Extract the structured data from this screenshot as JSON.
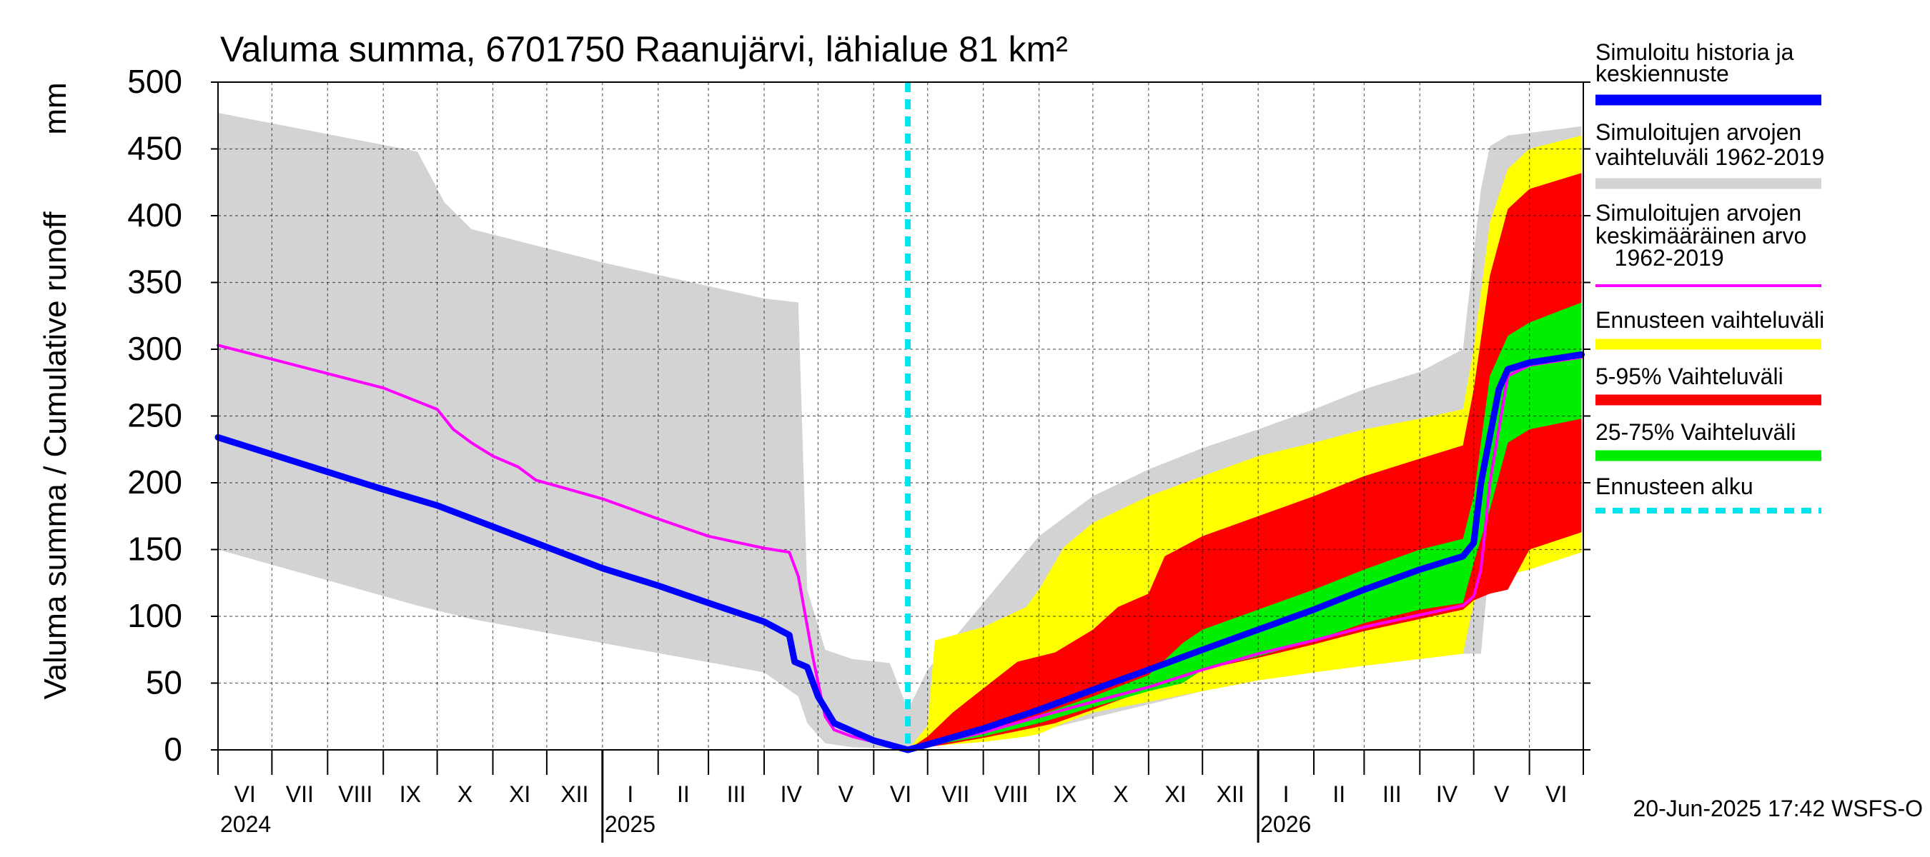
{
  "chart_data": {
    "type": "area",
    "title": "Valuma summa, 6701750 Raanujärvi, lähialue 81 km²",
    "ylabel": "Valuma summa / Cumulative runoff",
    "yunit": "mm",
    "ylim": [
      0,
      500
    ],
    "yticks": [
      0,
      50,
      100,
      150,
      200,
      250,
      300,
      350,
      400,
      450,
      500
    ],
    "xlim": [
      "2024-06-01",
      "2026-06-30"
    ],
    "grid": true,
    "legend_position": "right",
    "footer": "20-Jun-2025 17:42 WSFS-O",
    "forecast_start": "2025-06-20",
    "months": [
      {
        "label": "VI",
        "start": "2024-06-01"
      },
      {
        "label": "VII",
        "start": "2024-07-01"
      },
      {
        "label": "VIII",
        "start": "2024-08-01"
      },
      {
        "label": "IX",
        "start": "2024-09-01"
      },
      {
        "label": "X",
        "start": "2024-10-01"
      },
      {
        "label": "XI",
        "start": "2024-11-01"
      },
      {
        "label": "XII",
        "start": "2024-12-01"
      },
      {
        "label": "I",
        "start": "2025-01-01"
      },
      {
        "label": "II",
        "start": "2025-02-01"
      },
      {
        "label": "III",
        "start": "2025-03-01"
      },
      {
        "label": "IV",
        "start": "2025-04-01"
      },
      {
        "label": "V",
        "start": "2025-05-01"
      },
      {
        "label": "VI",
        "start": "2025-06-01"
      },
      {
        "label": "VII",
        "start": "2025-07-01"
      },
      {
        "label": "VIII",
        "start": "2025-08-01"
      },
      {
        "label": "IX",
        "start": "2025-09-01"
      },
      {
        "label": "X",
        "start": "2025-10-01"
      },
      {
        "label": "XI",
        "start": "2025-11-01"
      },
      {
        "label": "XII",
        "start": "2025-12-01"
      },
      {
        "label": "I",
        "start": "2026-01-01"
      },
      {
        "label": "II",
        "start": "2026-02-01"
      },
      {
        "label": "III",
        "start": "2026-03-01"
      },
      {
        "label": "IV",
        "start": "2026-04-01"
      },
      {
        "label": "V",
        "start": "2026-05-01"
      },
      {
        "label": "VI",
        "start": "2026-06-01"
      }
    ],
    "years": [
      {
        "label": "2024",
        "date": "2024-06-01"
      },
      {
        "label": "2025",
        "date": "2025-01-01"
      },
      {
        "label": "2026",
        "date": "2026-01-01"
      }
    ],
    "legend": [
      {
        "label": "Simuloitu historia ja\nkeskiennuste",
        "color": "#0000ff",
        "style": "thick"
      },
      {
        "label": "Simuloitujen arvojen\nvaihteluväli 1962-2019",
        "color": "#d3d3d3",
        "style": "thick"
      },
      {
        "label": "Simuloitujen arvojen\nkeskimääräinen arvo\n   1962-2019",
        "color": "#ff00ff",
        "style": "thin"
      },
      {
        "label": "Ennusteen vaihteluväli",
        "color": "#ffff00",
        "style": "thick"
      },
      {
        "label": "5-95% Vaihteluväli",
        "color": "#ff0000",
        "style": "thick"
      },
      {
        "label": "25-75% Vaihteluväli",
        "color": "#00ee00",
        "style": "thick"
      },
      {
        "label": "Ennusteen alku",
        "color": "#00e5ee",
        "style": "dotted"
      }
    ],
    "series": [
      {
        "name": "Simuloitujen arvojen vaihteluväli 1962-2019",
        "kind": "band",
        "color": "#d3d3d3",
        "x": [
          "2024-06-01",
          "2024-09-20",
          "2024-10-05",
          "2024-10-20",
          "2025-01-01",
          "2025-04-01",
          "2025-04-20",
          "2025-04-25",
          "2025-05-05",
          "2025-05-20",
          "2025-06-10",
          "2025-06-20",
          "2025-07-01",
          "2025-08-01",
          "2025-09-01",
          "2025-10-01",
          "2025-11-01",
          "2025-12-01",
          "2026-01-01",
          "2026-02-01",
          "2026-03-01",
          "2026-04-01",
          "2026-04-25",
          "2026-05-05",
          "2026-05-10",
          "2026-05-20",
          "2026-06-01",
          "2026-06-30"
        ],
        "upper": [
          477,
          448,
          410,
          390,
          365,
          338,
          335,
          120,
          75,
          68,
          65,
          30,
          60,
          110,
          160,
          190,
          210,
          226,
          240,
          255,
          270,
          283,
          300,
          420,
          452,
          460,
          462,
          467
        ],
        "lower": [
          150,
          108,
          103,
          98,
          80,
          58,
          40,
          20,
          5,
          2,
          1,
          0,
          2,
          7,
          14,
          24,
          34,
          44,
          52,
          58,
          63,
          68,
          72,
          72,
          143,
          145,
          147,
          150
        ]
      },
      {
        "name": "Ennusteen vaihteluväli",
        "kind": "band",
        "color": "#ffff00",
        "x": [
          "2025-06-20",
          "2025-07-01",
          "2025-07-05",
          "2025-08-01",
          "2025-08-25",
          "2025-09-01",
          "2025-09-15",
          "2025-10-01",
          "2025-11-01",
          "2025-12-01",
          "2026-01-01",
          "2026-02-01",
          "2026-03-01",
          "2026-04-01",
          "2026-04-25",
          "2026-05-01",
          "2026-05-10",
          "2026-05-20",
          "2026-06-01",
          "2026-06-30"
        ],
        "upper": [
          0,
          18,
          82,
          92,
          107,
          120,
          152,
          170,
          190,
          205,
          220,
          230,
          240,
          248,
          255,
          300,
          395,
          435,
          450,
          460
        ],
        "lower": [
          0,
          2,
          3,
          6,
          10,
          12,
          20,
          28,
          36,
          44,
          52,
          58,
          63,
          68,
          72,
          110,
          127,
          131,
          135,
          148
        ]
      },
      {
        "name": "5-95% Vaihteluväli",
        "kind": "band",
        "color": "#ff0000",
        "x": [
          "2025-06-20",
          "2025-07-01",
          "2025-07-15",
          "2025-08-01",
          "2025-08-20",
          "2025-09-10",
          "2025-10-01",
          "2025-10-15",
          "2025-11-01",
          "2025-11-10",
          "2025-12-01",
          "2026-01-01",
          "2026-02-01",
          "2026-03-01",
          "2026-04-01",
          "2026-04-25",
          "2026-05-01",
          "2026-05-10",
          "2026-05-20",
          "2026-06-01",
          "2026-06-30"
        ],
        "upper": [
          0,
          10,
          28,
          46,
          66,
          73,
          90,
          107,
          117,
          145,
          160,
          175,
          190,
          205,
          218,
          228,
          270,
          355,
          405,
          420,
          432
        ],
        "lower": [
          0,
          2,
          5,
          9,
          14,
          20,
          30,
          37,
          45,
          52,
          60,
          69,
          79,
          89,
          98,
          105,
          112,
          117,
          120,
          150,
          163
        ]
      },
      {
        "name": "25-75% Vaihteluväli",
        "kind": "band",
        "color": "#00ee00",
        "x": [
          "2025-06-20",
          "2025-07-01",
          "2025-08-01",
          "2025-09-01",
          "2025-10-01",
          "2025-11-01",
          "2025-11-20",
          "2025-12-01",
          "2026-01-01",
          "2026-02-01",
          "2026-03-01",
          "2026-04-01",
          "2026-04-25",
          "2026-05-01",
          "2026-05-10",
          "2026-05-20",
          "2026-06-01",
          "2026-06-30"
        ],
        "upper": [
          0,
          4,
          13,
          26,
          40,
          56,
          80,
          90,
          105,
          120,
          135,
          150,
          158,
          190,
          280,
          310,
          320,
          335
        ],
        "lower": [
          0,
          3,
          10,
          20,
          32,
          44,
          50,
          60,
          70,
          82,
          95,
          105,
          110,
          140,
          180,
          230,
          240,
          248
        ]
      },
      {
        "name": "Simuloitujen arvojen keskimääräinen arvo 1962-2019",
        "kind": "line",
        "color": "#ff00ff",
        "x": [
          "2024-06-01",
          "2024-09-01",
          "2024-10-01",
          "2024-10-10",
          "2024-10-20",
          "2024-11-01",
          "2024-11-15",
          "2024-11-25",
          "2025-01-01",
          "2025-02-01",
          "2025-03-01",
          "2025-04-01",
          "2025-04-15",
          "2025-04-20",
          "2025-04-28",
          "2025-05-05",
          "2025-05-10",
          "2025-05-20",
          "2025-06-01",
          "2025-06-20",
          "2025-07-01",
          "2025-08-01",
          "2025-09-01",
          "2025-10-01",
          "2025-11-01",
          "2025-12-01",
          "2026-01-01",
          "2026-02-01",
          "2026-03-01",
          "2026-04-01",
          "2026-04-25",
          "2026-05-01",
          "2026-05-05",
          "2026-05-10",
          "2026-05-20",
          "2026-06-01",
          "2026-06-30"
        ],
        "y": [
          303,
          271,
          255,
          240,
          230,
          220,
          212,
          202,
          188,
          173,
          160,
          151,
          148,
          130,
          70,
          25,
          15,
          10,
          6,
          0,
          4,
          13,
          25,
          36,
          47,
          60,
          72,
          82,
          92,
          101,
          108,
          115,
          135,
          200,
          280,
          288,
          294
        ]
      },
      {
        "name": "Simuloitu historia ja keskiennuste",
        "kind": "line",
        "color": "#0000ff",
        "x": [
          "2024-06-01",
          "2024-09-01",
          "2024-10-01",
          "2025-01-01",
          "2025-02-01",
          "2025-03-01",
          "2025-04-01",
          "2025-04-15",
          "2025-04-18",
          "2025-04-25",
          "2025-05-01",
          "2025-05-10",
          "2025-06-01",
          "2025-06-20",
          "2025-07-01",
          "2025-08-01",
          "2025-09-01",
          "2025-10-01",
          "2025-11-01",
          "2025-12-01",
          "2026-01-01",
          "2026-02-01",
          "2026-03-01",
          "2026-04-01",
          "2026-04-25",
          "2026-05-01",
          "2026-05-05",
          "2026-05-15",
          "2026-05-20",
          "2026-06-01",
          "2026-06-30"
        ],
        "y": [
          234,
          195,
          183,
          136,
          123,
          110,
          96,
          86,
          66,
          62,
          40,
          20,
          7,
          0,
          4,
          16,
          30,
          45,
          60,
          75,
          90,
          105,
          120,
          135,
          145,
          155,
          200,
          270,
          285,
          290,
          296
        ]
      }
    ]
  }
}
